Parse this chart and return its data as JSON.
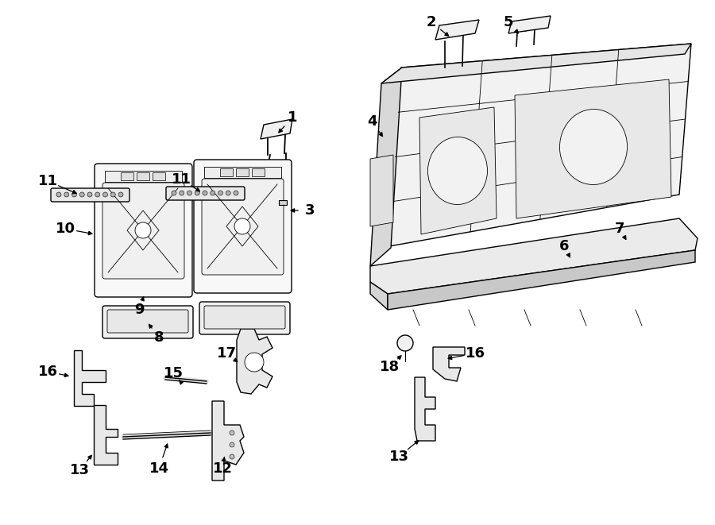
{
  "bg_color": "#ffffff",
  "line_color": "#000000",
  "lw": 1.0,
  "lw_thin": 0.6,
  "label_fs": 13
}
